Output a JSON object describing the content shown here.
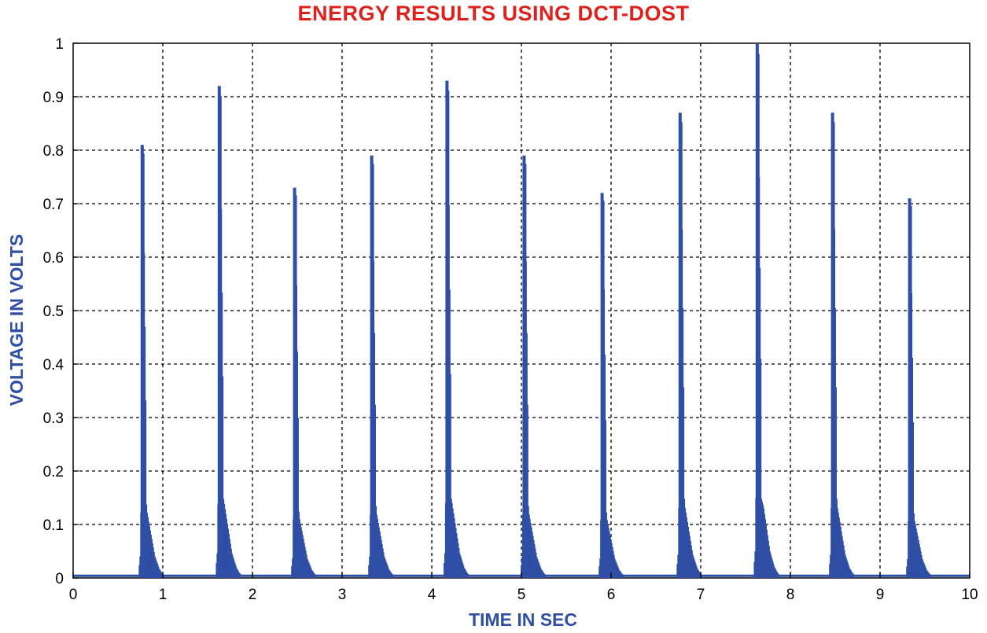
{
  "chart_data": {
    "type": "line",
    "title": "ENERGY RESULTS USING DCT-DOST",
    "xlabel": "TIME IN SEC",
    "ylabel": "VOLTAGE IN VOLTS",
    "xlim": [
      0,
      10
    ],
    "ylim": [
      0,
      1
    ],
    "xticks": [
      "0",
      "1",
      "2",
      "3",
      "4",
      "5",
      "6",
      "7",
      "8",
      "9",
      "10"
    ],
    "yticks": [
      "0",
      "0.1",
      "0.2",
      "0.3",
      "0.4",
      "0.5",
      "0.6",
      "0.7",
      "0.8",
      "0.9",
      "1"
    ],
    "grid": true,
    "line_color": "#2e4fa5",
    "series": [
      {
        "peaks": [
          {
            "x": 0.77,
            "y": 0.81
          },
          {
            "x": 1.63,
            "y": 0.92
          },
          {
            "x": 2.47,
            "y": 0.73
          },
          {
            "x": 3.33,
            "y": 0.79
          },
          {
            "x": 4.17,
            "y": 0.93
          },
          {
            "x": 5.03,
            "y": 0.79
          },
          {
            "x": 5.9,
            "y": 0.72
          },
          {
            "x": 6.77,
            "y": 0.87
          },
          {
            "x": 7.63,
            "y": 1.0
          },
          {
            "x": 8.47,
            "y": 0.87
          },
          {
            "x": 9.33,
            "y": 0.71
          }
        ]
      }
    ]
  }
}
